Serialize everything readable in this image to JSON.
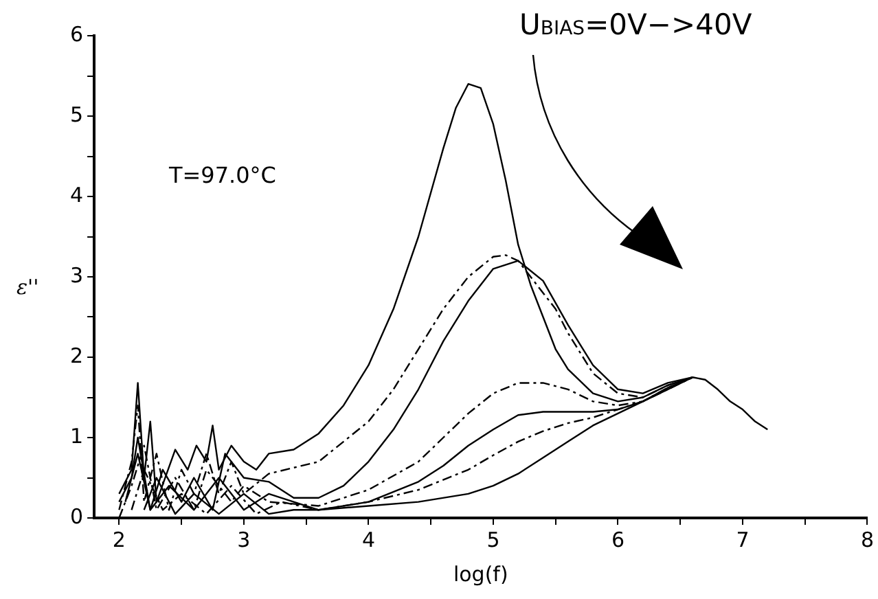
{
  "chart_data": {
    "type": "line",
    "xlabel": "log(f)",
    "ylabel": "ε''",
    "xlim": [
      1.8,
      8
    ],
    "ylim": [
      0,
      6
    ],
    "xticks": [
      2,
      {
        "value": 2.5,
        "label": null
      },
      3,
      {
        "value": 3.5,
        "label": null
      },
      4,
      {
        "value": 4.5,
        "label": null
      },
      5,
      {
        "value": 5.5,
        "label": null
      },
      6,
      {
        "value": 6.5,
        "label": null
      },
      7,
      {
        "value": 7.5,
        "label": null
      },
      8
    ],
    "yticks": [
      0,
      {
        "value": 0.5,
        "label": null
      },
      1,
      {
        "value": 1.5,
        "label": null
      },
      2,
      {
        "value": 2.5,
        "label": null
      },
      3,
      {
        "value": 3.5,
        "label": null
      },
      4,
      {
        "value": 4.5,
        "label": null
      },
      5,
      {
        "value": 5.5,
        "label": null
      },
      6
    ],
    "grid": false,
    "legend": false,
    "marker": "none",
    "annotations": [
      "T=97.0°C",
      "U$_{BIAS}$=0V−>40V"
    ],
    "series": [
      {
        "color": "#000000",
        "line_style": "solid",
        "x": [
          2.0,
          2.1,
          2.15,
          2.2,
          2.25,
          2.3,
          2.45,
          2.55,
          2.62,
          2.7,
          2.75,
          2.8,
          2.9,
          3.0,
          3.1,
          3.2,
          3.4,
          3.6,
          3.8,
          4.0,
          4.2,
          4.4,
          4.6,
          4.7,
          4.8,
          4.9,
          5.0,
          5.1,
          5.2,
          5.3,
          5.4,
          5.5,
          5.6,
          5.8,
          6.0,
          6.2,
          6.4,
          6.6,
          6.7,
          6.8,
          6.9,
          7.0,
          7.1,
          7.2
        ],
        "values": [
          0.3,
          0.6,
          1.68,
          0.5,
          1.2,
          0.2,
          0.85,
          0.6,
          0.9,
          0.7,
          1.15,
          0.6,
          0.9,
          0.7,
          0.6,
          0.8,
          0.85,
          1.05,
          1.4,
          1.9,
          2.6,
          3.5,
          4.6,
          5.1,
          5.4,
          5.35,
          4.9,
          4.2,
          3.4,
          2.9,
          2.5,
          2.1,
          1.85,
          1.55,
          1.45,
          1.5,
          1.65,
          1.75,
          1.72,
          1.6,
          1.45,
          1.35,
          1.2,
          1.1
        ]
      },
      {
        "color": "#000000",
        "line_style": "dashed",
        "x": [
          2.0,
          2.1,
          2.15,
          2.2,
          2.3,
          2.4,
          2.5,
          2.6,
          2.7,
          2.8,
          2.9,
          3.0,
          3.2,
          3.6,
          4.0,
          4.2,
          4.4,
          4.6,
          4.8,
          5.0,
          5.1,
          5.2,
          5.4,
          5.5,
          5.6,
          5.8,
          6.0,
          6.2,
          6.4,
          6.6
        ],
        "values": [
          0.1,
          0.7,
          1.4,
          0.2,
          0.8,
          0.1,
          0.6,
          0.3,
          0.8,
          0.3,
          0.7,
          0.3,
          0.55,
          0.7,
          1.2,
          1.6,
          2.1,
          2.6,
          3.0,
          3.25,
          3.27,
          3.2,
          2.8,
          2.6,
          2.3,
          1.8,
          1.55,
          1.5,
          1.65,
          1.75
        ]
      },
      {
        "color": "#000000",
        "line_style": "solid",
        "x": [
          2.0,
          2.1,
          2.15,
          2.25,
          2.35,
          2.5,
          2.6,
          2.75,
          2.85,
          3.0,
          3.2,
          3.4,
          3.6,
          3.8,
          4.0,
          4.2,
          4.4,
          4.6,
          4.8,
          5.0,
          5.2,
          5.4,
          5.6,
          5.8,
          6.0,
          6.2,
          6.4,
          6.6
        ],
        "values": [
          0.2,
          0.5,
          1.0,
          0.1,
          0.6,
          0.2,
          0.5,
          0.1,
          0.8,
          0.5,
          0.45,
          0.25,
          0.25,
          0.4,
          0.7,
          1.1,
          1.6,
          2.2,
          2.7,
          3.1,
          3.2,
          2.95,
          2.4,
          1.9,
          1.6,
          1.55,
          1.68,
          1.75
        ]
      },
      {
        "color": "#000000",
        "line_style": "dashed",
        "x": [
          2.0,
          2.1,
          2.2,
          2.3,
          2.45,
          2.6,
          2.7,
          2.9,
          3.0,
          3.2,
          3.6,
          4.0,
          4.4,
          4.6,
          4.8,
          5.0,
          5.2,
          5.4,
          5.6,
          5.8,
          6.0,
          6.2,
          6.4,
          6.6
        ],
        "values": [
          0,
          0.4,
          0.9,
          0.1,
          0.5,
          0.1,
          0.6,
          0.2,
          0.4,
          0.2,
          0.15,
          0.35,
          0.7,
          1.0,
          1.3,
          1.55,
          1.68,
          1.68,
          1.6,
          1.45,
          1.4,
          1.45,
          1.62,
          1.75
        ]
      },
      {
        "color": "#000000",
        "line_style": "solid",
        "x": [
          2.05,
          2.15,
          2.25,
          2.4,
          2.6,
          2.8,
          3.0,
          3.2,
          3.6,
          4.0,
          4.4,
          4.6,
          4.8,
          5.0,
          5.2,
          5.4,
          5.6,
          5.8,
          6.0,
          6.2,
          6.4,
          6.6
        ],
        "values": [
          0.2,
          0.8,
          0.1,
          0.4,
          0.1,
          0.5,
          0.1,
          0.3,
          0.1,
          0.2,
          0.45,
          0.65,
          0.9,
          1.1,
          1.28,
          1.32,
          1.32,
          1.32,
          1.35,
          1.45,
          1.62,
          1.75
        ]
      },
      {
        "color": "#000000",
        "line_style": "dashed",
        "x": [
          2.1,
          2.2,
          2.35,
          2.5,
          2.7,
          2.9,
          3.1,
          3.3,
          3.6,
          4.0,
          4.4,
          4.8,
          5.0,
          5.2,
          5.4,
          5.6,
          5.8,
          6.0,
          6.2,
          6.4,
          6.6
        ],
        "values": [
          0.1,
          0.6,
          0.1,
          0.3,
          0.05,
          0.4,
          0.05,
          0.2,
          0.1,
          0.2,
          0.35,
          0.6,
          0.78,
          0.95,
          1.08,
          1.18,
          1.25,
          1.35,
          1.45,
          1.6,
          1.75
        ]
      },
      {
        "color": "#000000",
        "line_style": "solid",
        "x": [
          2.2,
          2.3,
          2.45,
          2.6,
          2.8,
          3.0,
          3.2,
          3.4,
          3.6,
          4.0,
          4.4,
          4.8,
          5.0,
          5.2,
          5.4,
          5.6,
          5.8,
          6.0,
          6.2,
          6.4,
          6.6
        ],
        "values": [
          0.1,
          0.5,
          0.05,
          0.3,
          0.05,
          0.3,
          0.05,
          0.1,
          0.1,
          0.15,
          0.2,
          0.3,
          0.4,
          0.55,
          0.75,
          0.95,
          1.15,
          1.3,
          1.45,
          1.6,
          1.75
        ]
      }
    ]
  }
}
